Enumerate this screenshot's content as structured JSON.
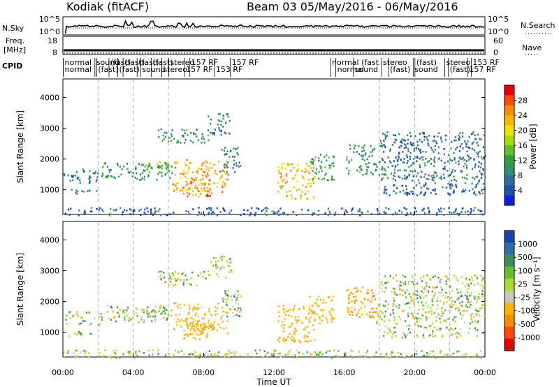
{
  "header": {
    "site": "Kodiak (fitACF)",
    "beam_range": "Beam 03 05/May/2016 - 06/May/2016"
  },
  "top_panels": {
    "nsky_label": "N.Sky",
    "nsky_ticks": [
      "10^5",
      "10^0"
    ],
    "nsearch_label": "N.Search",
    "nsearch_ticks": [
      "10^5",
      "10^0"
    ],
    "freq_label_1": "Freq.",
    "freq_label_2": "[MHz]",
    "freq_ticks": [
      "18",
      "8"
    ],
    "nave_label": "Nave",
    "nave_ticks": [
      "60",
      "0"
    ],
    "cpid_label": "CPID",
    "cpid_row1": [
      {
        "hour": 0.1,
        "text": "normal"
      },
      {
        "hour": 1.9,
        "text": "sound"
      },
      {
        "hour": 2.7,
        "text": "(fast)"
      },
      {
        "hour": 3.5,
        "text": "(fast)"
      },
      {
        "hour": 4.3,
        "text": "(fast)"
      },
      {
        "hour": 5.1,
        "text": "(fast)"
      },
      {
        "hour": 6.1,
        "text": "stereo"
      },
      {
        "hour": 7.3,
        "text": "157 RF"
      },
      {
        "hour": 9.6,
        "text": "157 RF"
      },
      {
        "hour": 15.3,
        "text": "normal (fast"
      },
      {
        "hour": 18.2,
        "text": "stereo"
      },
      {
        "hour": 20.1,
        "text": "(fast)"
      },
      {
        "hour": 21.8,
        "text": "stereo"
      },
      {
        "hour": 23.3,
        "text": "153 RF"
      }
    ],
    "cpid_row2": [
      {
        "hour": 0.1,
        "text": "normal"
      },
      {
        "hour": 2.0,
        "text": "(fast)"
      },
      {
        "hour": 3.2,
        "text": "(fast)"
      },
      {
        "hour": 4.5,
        "text": "sound"
      },
      {
        "hour": 5.7,
        "text": "stereo"
      },
      {
        "hour": 7.0,
        "text": "157 RF"
      },
      {
        "hour": 8.7,
        "text": "153 RF"
      },
      {
        "hour": 15.6,
        "text": "normal"
      },
      {
        "hour": 16.6,
        "text": "sound"
      },
      {
        "hour": 18.6,
        "text": "(fast)"
      },
      {
        "hour": 20.0,
        "text": "sound"
      },
      {
        "hour": 22.0,
        "text": "(fast)"
      },
      {
        "hour": 23.1,
        "text": "157 RF"
      }
    ]
  },
  "power_panel": {
    "ylabel": "Slant Range [km]",
    "yticks": [
      "4000",
      "3000",
      "2000",
      "1000"
    ],
    "colorbar_label": "Power [dB]",
    "colorbar_ticks": [
      "28",
      "24",
      "20",
      "16",
      "12",
      "8",
      "4"
    ],
    "colorbar_colors": [
      "#e60000",
      "#ff4a00",
      "#ff8a00",
      "#ffb400",
      "#f0e000",
      "#a8dc00",
      "#5fbf2f",
      "#2fa040",
      "#2f8f6f",
      "#2f6f9f",
      "#1f4fb4",
      "#0a20e0"
    ]
  },
  "velocity_panel": {
    "ylabel": "Slant Range [km]",
    "yticks": [
      "4000",
      "3000",
      "2000",
      "1000"
    ],
    "colorbar_label": "Velocity [m s⁻¹]",
    "colorbar_ticks": [
      "1000",
      "500",
      "100",
      "25",
      "-25",
      "-100",
      "-500",
      "-1000"
    ],
    "colorbar_colors": [
      "#1f3fb4",
      "#2a6fa8",
      "#3a8f5a",
      "#62c02a",
      "#a8dc30",
      "#c8c8c0",
      "#ffb400",
      "#ff8a00",
      "#ff4a00",
      "#e60000"
    ]
  },
  "x_axis": {
    "label": "Time UT",
    "ticks": [
      "00:00",
      "04:00",
      "08:00",
      "12:00",
      "16:00",
      "20:00",
      "00:00"
    ]
  },
  "chart_data": {
    "type": "heatmap",
    "title": "Kodiak (fitACF) Beam 03 05/May/2016 - 06/May/2016",
    "xlabel": "Time UT",
    "ylabel": "Slant Range [km]",
    "xlim": [
      0,
      24
    ],
    "ylim": [
      200,
      4600
    ],
    "power_range_db": [
      0,
      30
    ],
    "velocity_range": [
      -1200,
      1200
    ],
    "regions": [
      {
        "t0": 0.0,
        "t1": 2.2,
        "r0": 1250,
        "r1": 1700,
        "power": 6,
        "velocity": 0
      },
      {
        "t0": 0.3,
        "t1": 2.0,
        "r0": 900,
        "r1": 1050,
        "power": 6,
        "velocity": 0
      },
      {
        "t0": 2.2,
        "t1": 6.2,
        "r0": 1350,
        "r1": 1900,
        "power": 9,
        "velocity": 10
      },
      {
        "t0": 4.5,
        "t1": 6.0,
        "r0": 1600,
        "r1": 1950,
        "power": 14,
        "velocity": 30
      },
      {
        "t0": 6.2,
        "t1": 9.4,
        "r0": 950,
        "r1": 2000,
        "power": 22,
        "velocity": -120
      },
      {
        "t0": 6.8,
        "t1": 8.6,
        "r0": 800,
        "r1": 1400,
        "power": 24,
        "velocity": -250
      },
      {
        "t0": 9.0,
        "t1": 10.1,
        "r0": 1500,
        "r1": 2400,
        "power": 8,
        "velocity": 15
      },
      {
        "t0": 5.4,
        "t1": 8.4,
        "r0": 2550,
        "r1": 3000,
        "power": 9,
        "velocity": 5
      },
      {
        "t0": 8.2,
        "t1": 9.6,
        "r0": 2800,
        "r1": 3500,
        "power": 7,
        "velocity": 0
      },
      {
        "t0": 12.2,
        "t1": 14.3,
        "r0": 700,
        "r1": 1900,
        "power": 20,
        "velocity": -200
      },
      {
        "t0": 14.0,
        "t1": 15.4,
        "r0": 1300,
        "r1": 2200,
        "power": 10,
        "velocity": -150
      },
      {
        "t0": 16.1,
        "t1": 17.8,
        "r0": 1500,
        "r1": 2500,
        "power": 9,
        "velocity": -300
      },
      {
        "t0": 17.8,
        "t1": 24.0,
        "r0": 1300,
        "r1": 2000,
        "power": 7,
        "velocity": 0
      },
      {
        "t0": 18.2,
        "t1": 24.0,
        "r0": 850,
        "r1": 1250,
        "power": 6,
        "velocity": 0
      },
      {
        "t0": 18.0,
        "t1": 24.0,
        "r0": 2000,
        "r1": 2900,
        "power": 6,
        "velocity": 10
      },
      {
        "t0": 0.0,
        "t1": 24.0,
        "r0": 200,
        "r1": 450,
        "power": 5,
        "velocity": 0
      }
    ]
  }
}
